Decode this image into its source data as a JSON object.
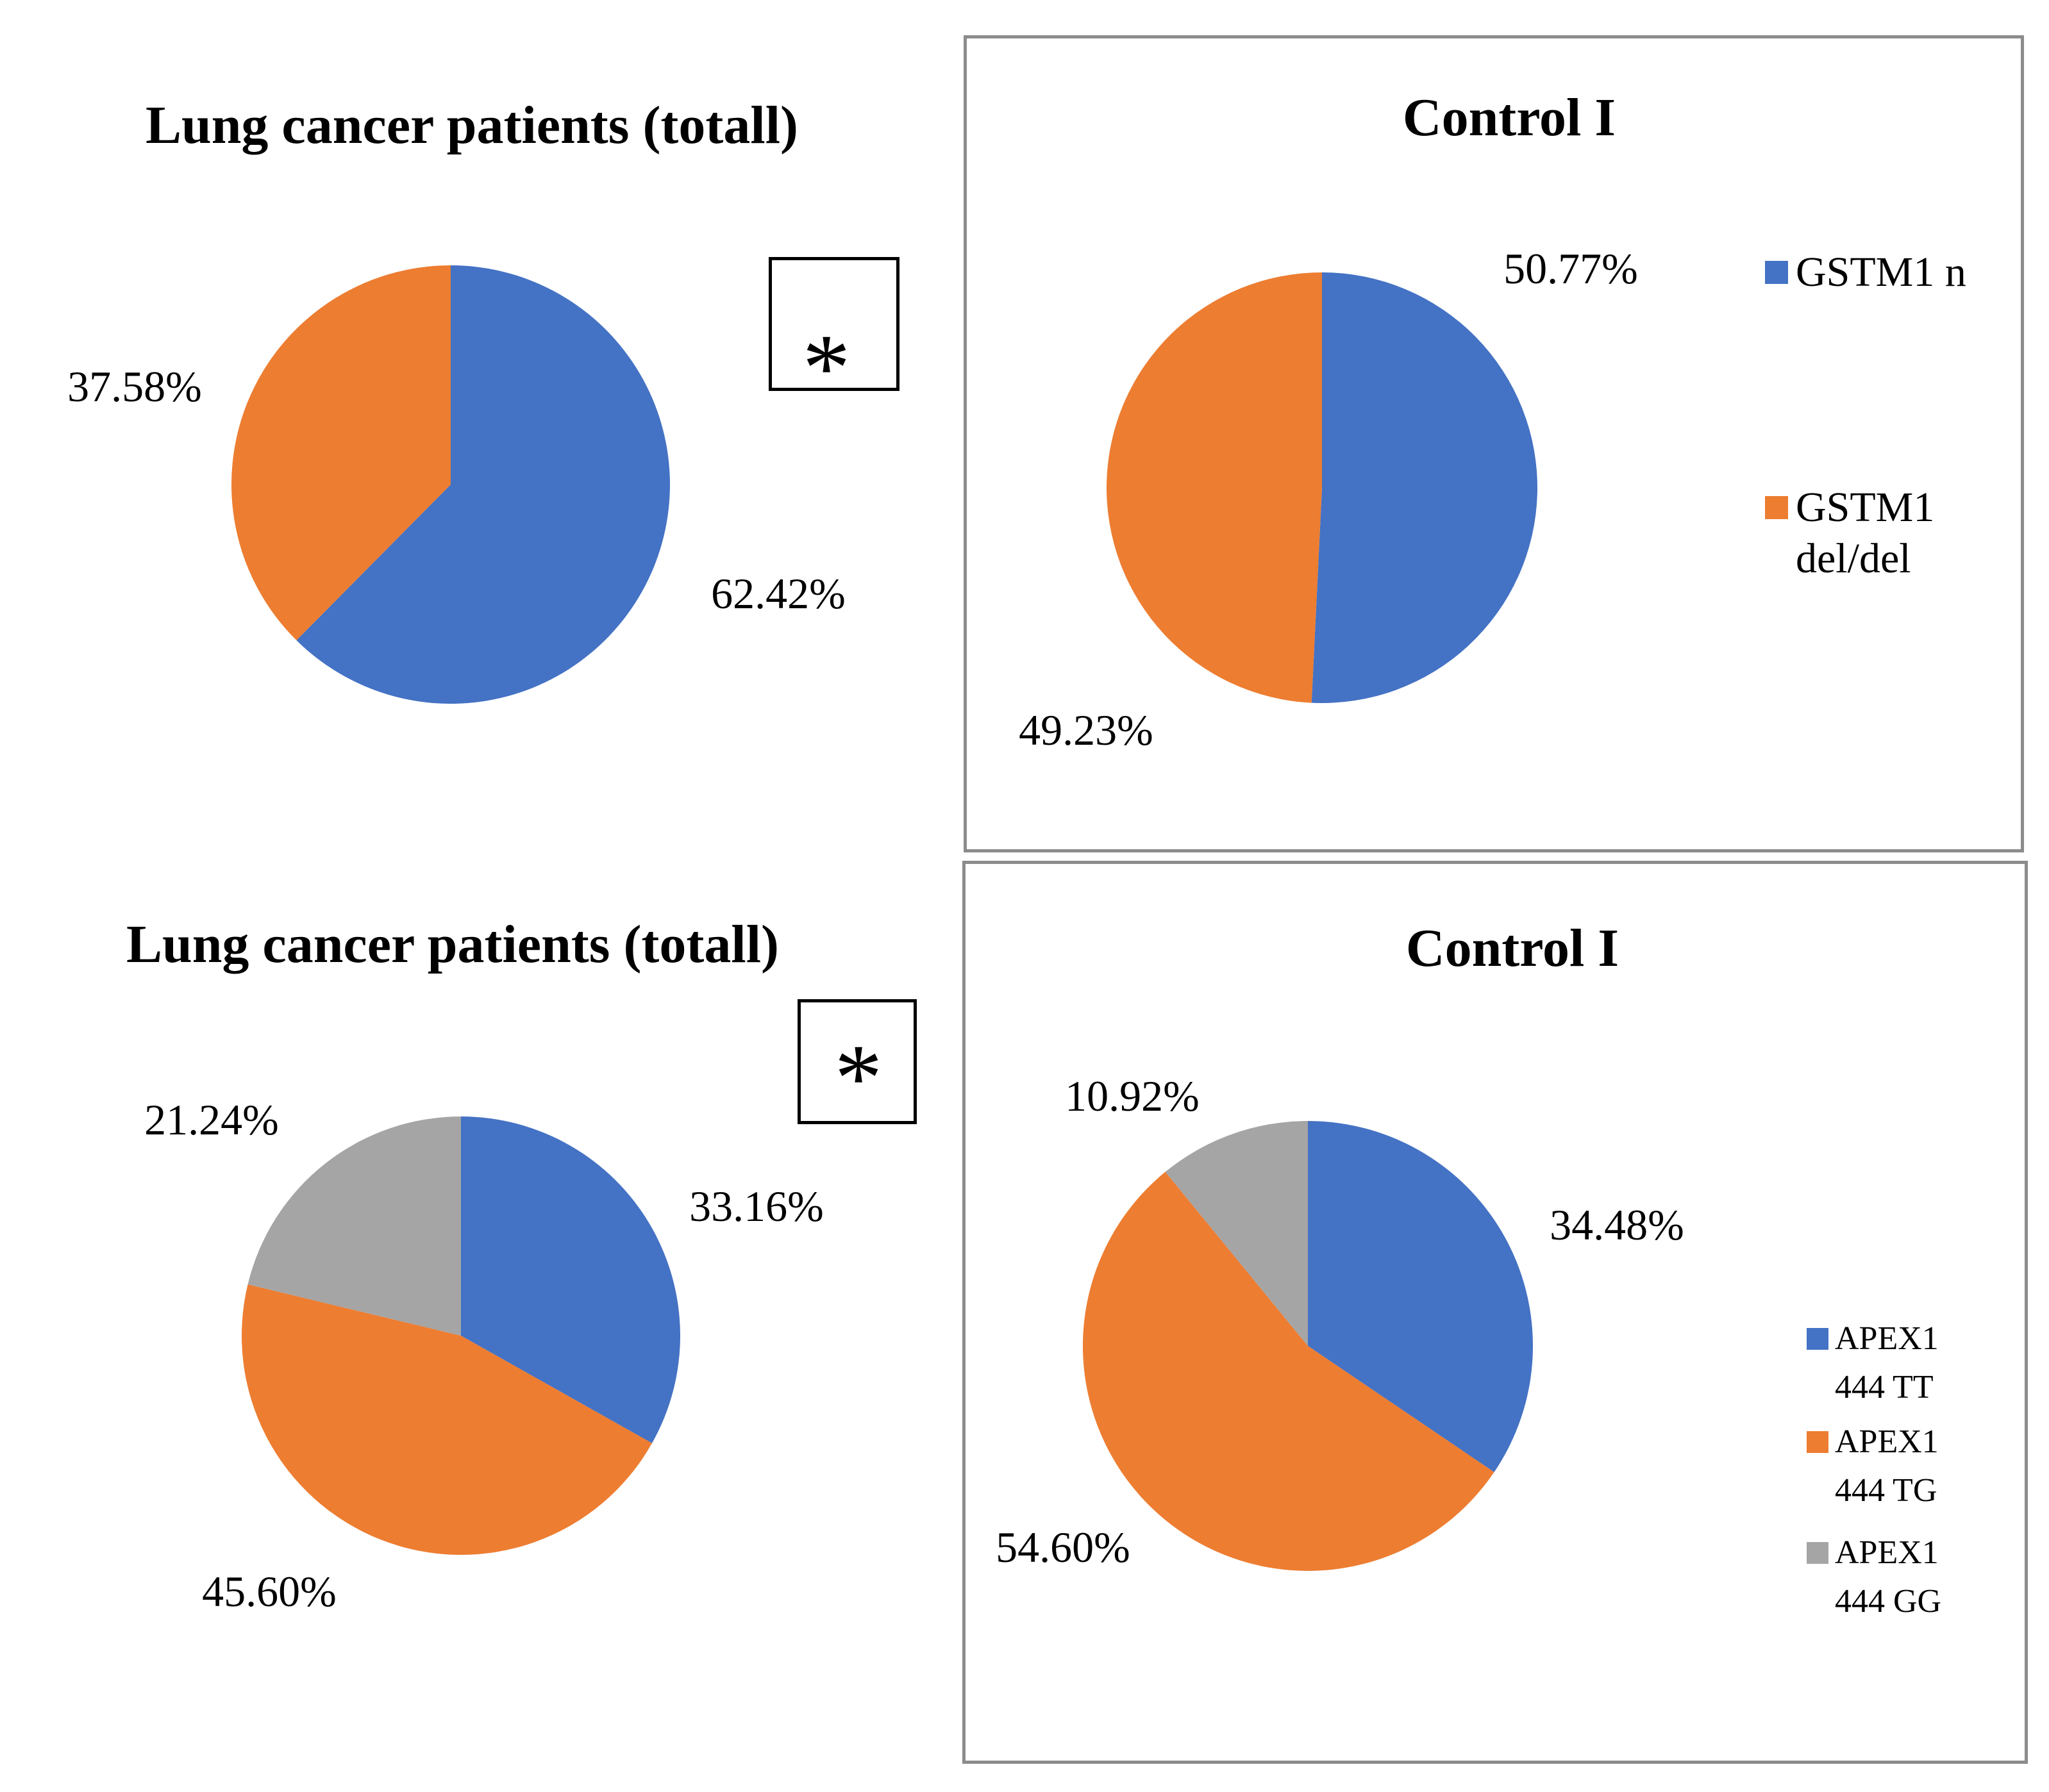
{
  "colors": {
    "blue": "#4472C4",
    "orange": "#ED7D31",
    "gray": "#A5A5A5",
    "panel_border": "#8C8C8C",
    "annotation_border": "#000000"
  },
  "annotations": {
    "significance_marker": "*"
  },
  "chart_data": [
    {
      "type": "pie",
      "title": "Lung cancer patients (totall)",
      "legend_position": "none",
      "annotation": "*",
      "start_angle_deg": 0,
      "direction": "clockwise",
      "series": [
        {
          "name": "GSTM1 n",
          "value": 62.42,
          "display": "62.42%",
          "color_key": "blue"
        },
        {
          "name": "GSTM1 del/del",
          "value": 37.58,
          "display": "37.58%",
          "color_key": "orange"
        }
      ]
    },
    {
      "type": "pie",
      "title": "Control I",
      "legend_position": "right",
      "start_angle_deg": 0,
      "direction": "clockwise",
      "series": [
        {
          "name": "GSTM1 n",
          "value": 50.77,
          "display": "50.77%",
          "color_key": "blue"
        },
        {
          "name": "GSTM1 del/del",
          "value": 49.23,
          "display": "49.23%",
          "color_key": "orange"
        }
      ],
      "legend_items": [
        {
          "color_key": "blue",
          "lines": [
            "GSTM1 n"
          ]
        },
        {
          "color_key": "orange",
          "lines": [
            "GSTM1",
            "del/del"
          ]
        }
      ]
    },
    {
      "type": "pie",
      "title": "Lung cancer patients (totall)",
      "legend_position": "none",
      "annotation": "*",
      "start_angle_deg": 0,
      "direction": "clockwise",
      "series": [
        {
          "name": "APEX1 444 TT",
          "value": 33.16,
          "display": "33.16%",
          "color_key": "blue"
        },
        {
          "name": "APEX1 444 TG",
          "value": 45.6,
          "display": "45.60%",
          "color_key": "orange"
        },
        {
          "name": "APEX1 444 GG",
          "value": 21.24,
          "display": "21.24%",
          "color_key": "gray"
        }
      ]
    },
    {
      "type": "pie",
      "title": "Control I",
      "legend_position": "right",
      "start_angle_deg": 0,
      "direction": "clockwise",
      "series": [
        {
          "name": "APEX1 444 TT",
          "value": 34.48,
          "display": "34.48%",
          "color_key": "blue"
        },
        {
          "name": "APEX1 444 TG",
          "value": 54.6,
          "display": "54.60%",
          "color_key": "orange"
        },
        {
          "name": "APEX1 444 GG",
          "value": 10.92,
          "display": "10.92%",
          "color_key": "gray"
        }
      ],
      "legend_items": [
        {
          "color_key": "blue",
          "lines": [
            "APEX1",
            "444 TT"
          ]
        },
        {
          "color_key": "orange",
          "lines": [
            "APEX1",
            "444 TG"
          ]
        },
        {
          "color_key": "gray",
          "lines": [
            "APEX1",
            "444 GG"
          ]
        }
      ]
    }
  ]
}
